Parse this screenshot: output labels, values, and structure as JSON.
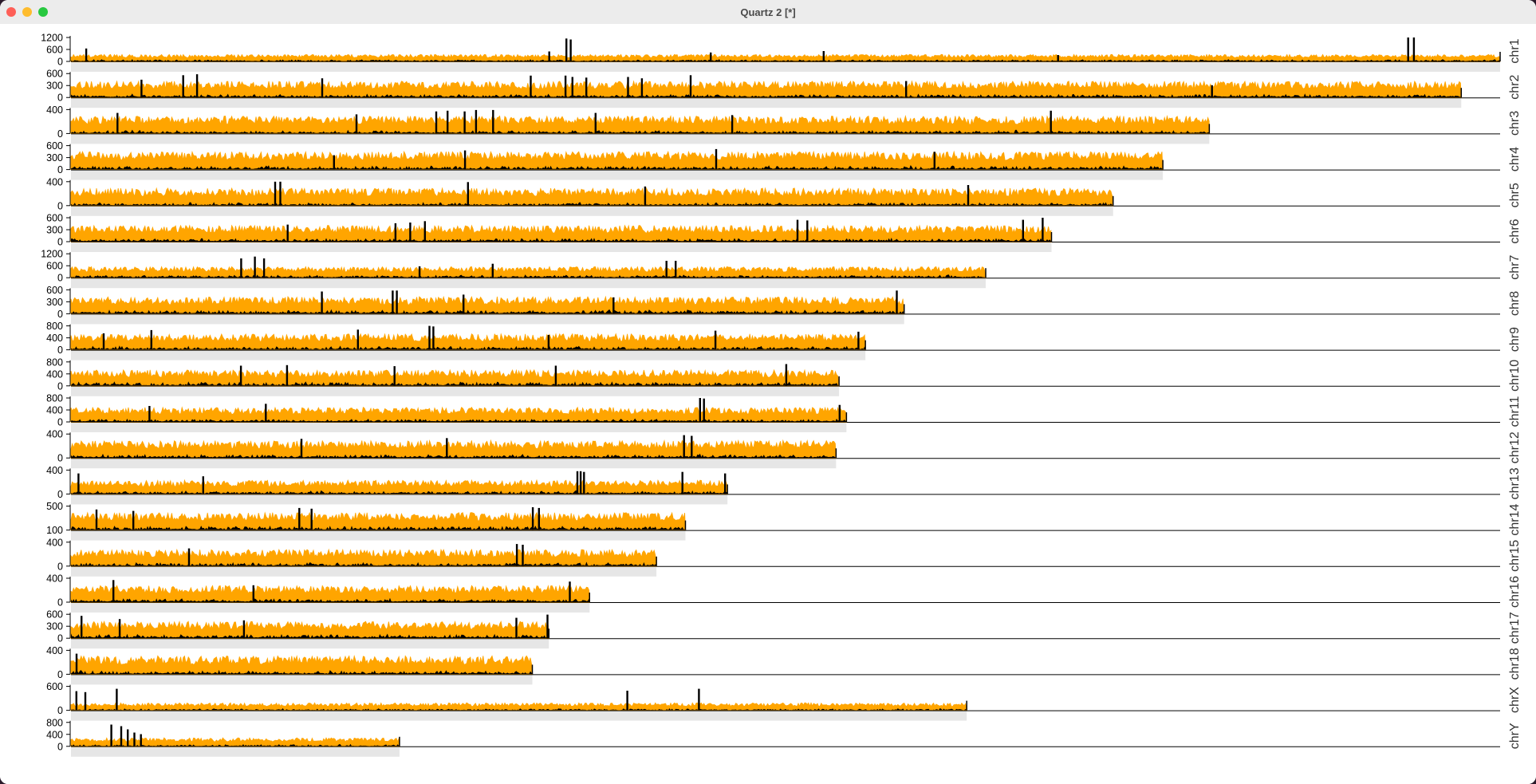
{
  "window": {
    "title": "Quartz 2 [*]"
  },
  "colors": {
    "coverage": "#FFA500",
    "signal": "#000000",
    "track_bg": "#E6E6E6",
    "axis": "#000000"
  },
  "chart_data": {
    "type": "area",
    "title": "",
    "xlabel": "",
    "ylabel": "",
    "grid": false,
    "legend": "none",
    "series": [
      {
        "name": "",
        "color": "#FFA500"
      },
      {
        "name": "",
        "color": "#000000"
      }
    ],
    "panels": [
      {
        "chr": "chr1",
        "length": 248.96,
        "ymax": 1200,
        "ticks": [
          "1200",
          "600",
          "0"
        ],
        "orange_level": 280,
        "black_level": 80,
        "spikes": [
          [
            0.01,
            650
          ],
          [
            0.334,
            500
          ],
          [
            0.346,
            1150
          ],
          [
            0.349,
            1100
          ],
          [
            0.447,
            450
          ],
          [
            0.526,
            520
          ],
          [
            0.69,
            320
          ],
          [
            0.935,
            1200
          ],
          [
            0.939,
            1200
          ]
        ]
      },
      {
        "chr": "chr2",
        "length": 242.19,
        "ymax": 700,
        "ticks": [
          "600",
          "300",
          "0"
        ],
        "orange_level": 380,
        "black_level": 80,
        "spikes": [
          [
            0.05,
            520
          ],
          [
            0.08,
            650
          ],
          [
            0.09,
            680
          ],
          [
            0.18,
            560
          ],
          [
            0.33,
            640
          ],
          [
            0.355,
            640
          ],
          [
            0.36,
            600
          ],
          [
            0.37,
            580
          ],
          [
            0.4,
            600
          ],
          [
            0.41,
            560
          ],
          [
            0.445,
            650
          ],
          [
            0.6,
            480
          ],
          [
            0.82,
            360
          ]
        ]
      },
      {
        "chr": "chr3",
        "length": 198.3,
        "ymax": 650,
        "ticks": [
          "400",
          "0"
        ],
        "orange_level": 380,
        "black_level": 70,
        "spikes": [
          [
            0.04,
            560
          ],
          [
            0.25,
            520
          ],
          [
            0.32,
            600
          ],
          [
            0.33,
            620
          ],
          [
            0.345,
            600
          ],
          [
            0.355,
            640
          ],
          [
            0.37,
            640
          ],
          [
            0.46,
            560
          ],
          [
            0.58,
            500
          ],
          [
            0.86,
            620
          ]
        ]
      },
      {
        "chr": "chr4",
        "length": 190.21,
        "ymax": 700,
        "ticks": [
          "600",
          "300",
          "0"
        ],
        "orange_level": 420,
        "black_level": 90,
        "spikes": [
          [
            0.24,
            420
          ],
          [
            0.36,
            560
          ],
          [
            0.59,
            600
          ],
          [
            0.79,
            520
          ]
        ]
      },
      {
        "chr": "chr5",
        "length": 181.54,
        "ymax": 650,
        "ticks": [
          "400",
          "0"
        ],
        "orange_level": 380,
        "black_level": 70,
        "spikes": [
          [
            0.195,
            650
          ],
          [
            0.2,
            650
          ],
          [
            0.38,
            640
          ],
          [
            0.55,
            520
          ],
          [
            0.86,
            560
          ]
        ]
      },
      {
        "chr": "chr6",
        "length": 170.81,
        "ymax": 700,
        "ticks": [
          "600",
          "300",
          "0"
        ],
        "orange_level": 380,
        "black_level": 80,
        "spikes": [
          [
            0.22,
            500
          ],
          [
            0.33,
            540
          ],
          [
            0.345,
            560
          ],
          [
            0.36,
            600
          ],
          [
            0.74,
            640
          ],
          [
            0.75,
            620
          ],
          [
            0.97,
            640
          ],
          [
            0.99,
            700
          ]
        ]
      },
      {
        "chr": "chr7",
        "length": 159.35,
        "ymax": 1300,
        "ticks": [
          "1200",
          "600",
          "0"
        ],
        "orange_level": 480,
        "black_level": 120,
        "spikes": [
          [
            0.185,
            1050
          ],
          [
            0.2,
            1150
          ],
          [
            0.21,
            1050
          ],
          [
            0.38,
            620
          ],
          [
            0.46,
            760
          ],
          [
            0.65,
            920
          ],
          [
            0.66,
            920
          ]
        ]
      },
      {
        "chr": "chr8",
        "length": 145.14,
        "ymax": 700,
        "ticks": [
          "600",
          "300",
          "0"
        ],
        "orange_level": 400,
        "black_level": 90,
        "spikes": [
          [
            0.3,
            650
          ],
          [
            0.385,
            680
          ],
          [
            0.39,
            680
          ],
          [
            0.47,
            560
          ],
          [
            0.65,
            480
          ],
          [
            0.99,
            680
          ]
        ]
      },
      {
        "chr": "chr9",
        "length": 138.39,
        "ymax": 900,
        "ticks": [
          "800",
          "400",
          "0"
        ],
        "orange_level": 480,
        "black_level": 110,
        "spikes": [
          [
            0.04,
            620
          ],
          [
            0.1,
            740
          ],
          [
            0.36,
            760
          ],
          [
            0.45,
            900
          ],
          [
            0.455,
            880
          ],
          [
            0.6,
            560
          ],
          [
            0.81,
            720
          ],
          [
            0.99,
            680
          ]
        ]
      },
      {
        "chr": "chr10",
        "length": 133.8,
        "ymax": 900,
        "ticks": [
          "800",
          "400",
          "0"
        ],
        "orange_level": 480,
        "black_level": 120,
        "spikes": [
          [
            0.22,
            760
          ],
          [
            0.28,
            780
          ],
          [
            0.42,
            740
          ],
          [
            0.63,
            760
          ],
          [
            0.93,
            820
          ]
        ]
      },
      {
        "chr": "chr11",
        "length": 135.09,
        "ymax": 900,
        "ticks": [
          "800",
          "400",
          "0"
        ],
        "orange_level": 440,
        "black_level": 90,
        "spikes": [
          [
            0.1,
            600
          ],
          [
            0.25,
            680
          ],
          [
            0.81,
            900
          ],
          [
            0.815,
            880
          ],
          [
            0.99,
            640
          ]
        ]
      },
      {
        "chr": "chr12",
        "length": 133.28,
        "ymax": 650,
        "ticks": [
          "400",
          "0"
        ],
        "orange_level": 380,
        "black_level": 80,
        "spikes": [
          [
            0.3,
            520
          ],
          [
            0.49,
            540
          ],
          [
            0.8,
            620
          ],
          [
            0.81,
            600
          ]
        ]
      },
      {
        "chr": "chr13",
        "length": 114.36,
        "ymax": 650,
        "ticks": [
          "400",
          "0"
        ],
        "orange_level": 300,
        "black_level": 70,
        "spikes": [
          [
            0.01,
            560
          ],
          [
            0.2,
            480
          ],
          [
            0.77,
            620
          ],
          [
            0.775,
            620
          ],
          [
            0.78,
            600
          ],
          [
            0.93,
            600
          ],
          [
            0.995,
            560
          ]
        ]
      },
      {
        "chr": "chr14",
        "length": 107.04,
        "ymax": 650,
        "ticks": [
          "500",
          "100"
        ],
        "orange_level": 380,
        "black_level": 90,
        "spikes": [
          [
            0.04,
            560
          ],
          [
            0.1,
            520
          ],
          [
            0.37,
            600
          ],
          [
            0.39,
            580
          ],
          [
            0.75,
            620
          ],
          [
            0.76,
            600
          ]
        ]
      },
      {
        "chr": "chr15",
        "length": 101.99,
        "ymax": 650,
        "ticks": [
          "400",
          "0"
        ],
        "orange_level": 360,
        "black_level": 80,
        "spikes": [
          [
            0.2,
            480
          ],
          [
            0.76,
            600
          ],
          [
            0.77,
            580
          ]
        ]
      },
      {
        "chr": "chr16",
        "length": 90.34,
        "ymax": 650,
        "ticks": [
          "400",
          "0"
        ],
        "orange_level": 360,
        "black_level": 80,
        "spikes": [
          [
            0.08,
            600
          ],
          [
            0.35,
            460
          ],
          [
            0.96,
            560
          ]
        ]
      },
      {
        "chr": "chr17",
        "length": 83.26,
        "ymax": 750,
        "ticks": [
          "600",
          "300",
          "0"
        ],
        "orange_level": 420,
        "black_level": 100,
        "spikes": [
          [
            0.02,
            700
          ],
          [
            0.1,
            600
          ],
          [
            0.36,
            560
          ],
          [
            0.93,
            640
          ],
          [
            0.995,
            740
          ]
        ]
      },
      {
        "chr": "chr18",
        "length": 80.37,
        "ymax": 650,
        "ticks": [
          "400",
          "0"
        ],
        "orange_level": 400,
        "black_level": 80,
        "spikes": [
          [
            0.01,
            560
          ]
        ]
      },
      {
        "chr": "chrX",
        "length": 156.04,
        "ymax": 1000,
        "ticks": [
          "600",
          "0"
        ],
        "orange_level": 250,
        "black_level": 60,
        "spikes": [
          [
            0.005,
            800
          ],
          [
            0.015,
            760
          ],
          [
            0.05,
            900
          ],
          [
            0.62,
            820
          ],
          [
            0.7,
            900
          ]
        ]
      },
      {
        "chr": "chrY",
        "length": 57.23,
        "ymax": 900,
        "ticks": [
          "800",
          "400",
          "0"
        ],
        "orange_level": 260,
        "black_level": 60,
        "spikes": [
          [
            0.12,
            820
          ],
          [
            0.15,
            760
          ],
          [
            0.17,
            640
          ],
          [
            0.19,
            520
          ],
          [
            0.21,
            460
          ]
        ]
      }
    ]
  }
}
